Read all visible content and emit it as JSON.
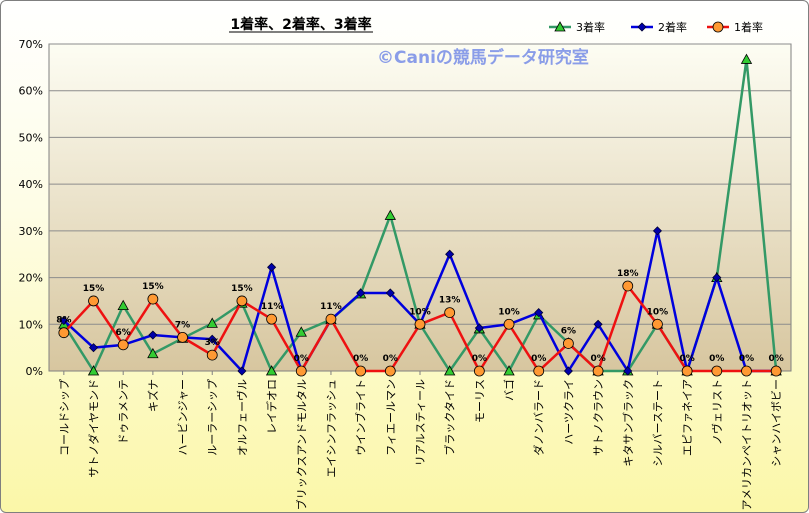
{
  "chart_data": {
    "type": "line",
    "title": "1着率、2着率、3着率",
    "watermark": "©Caniの競馬データ研究室",
    "ylim": [
      0,
      70
    ],
    "yticks": [
      "0%",
      "10%",
      "20%",
      "30%",
      "40%",
      "50%",
      "60%",
      "70%"
    ],
    "categories": [
      "コールドシップ",
      "サトノダイヤモンド",
      "ドゥラメンテ",
      "キズナ",
      "ハービンジャー",
      "ルーラーシップ",
      "オルフェーヴル",
      "レイデオロ",
      "ブリックスアンドモルタル",
      "エイシンフラッシュ",
      "ウインブライト",
      "フィエールマン",
      "リアルスティール",
      "ブラックタイド",
      "モーリス",
      "バゴ",
      "ダノンバラード",
      "ハーツクライ",
      "サトノクラウン",
      "キタサンブラック",
      "シルバーステート",
      "エピファネイア",
      "ノヴェリスト",
      "アメリカンペイトリオット",
      "シャンハイボビー"
    ],
    "series": [
      {
        "name": "3着率",
        "color": "#339966",
        "values": [
          10,
          0,
          14,
          3.7,
          7,
          10.2,
          14.5,
          0,
          8.3,
          11,
          16.5,
          33.3,
          10,
          0,
          9,
          0,
          12,
          6,
          0,
          0,
          10,
          0,
          20,
          66.7,
          0
        ]
      },
      {
        "name": "2着率",
        "color": "#0000dd",
        "values": [
          10.8,
          5,
          5.6,
          7.7,
          7.2,
          6.8,
          0,
          22.2,
          0,
          11,
          16.7,
          16.7,
          10,
          25,
          9.2,
          10,
          12.5,
          0,
          10,
          0,
          30,
          0,
          20,
          0,
          0
        ]
      },
      {
        "name": "1着率",
        "color": "#ee1111",
        "values": [
          8.2,
          15,
          5.6,
          15.4,
          7.2,
          3.4,
          15,
          11.1,
          0,
          11.1,
          0,
          0,
          10,
          12.5,
          0,
          10,
          0,
          5.9,
          0,
          18.2,
          10,
          0,
          0,
          0,
          0
        ]
      }
    ],
    "data_labels": [
      "8%",
      "15%",
      "6%",
      "15%",
      "7%",
      "3%",
      "15%",
      "11%",
      "0%",
      "11%",
      "0%",
      "0%",
      "10%",
      "13%",
      "0%",
      "10%",
      "0%",
      "6%",
      "0%",
      "18%",
      "10%",
      "0%",
      "0%",
      "0%",
      "0%"
    ],
    "legend": {
      "position": "top-right",
      "entries": [
        "3着率",
        "2着率",
        "1着率"
      ]
    },
    "grid": true
  }
}
